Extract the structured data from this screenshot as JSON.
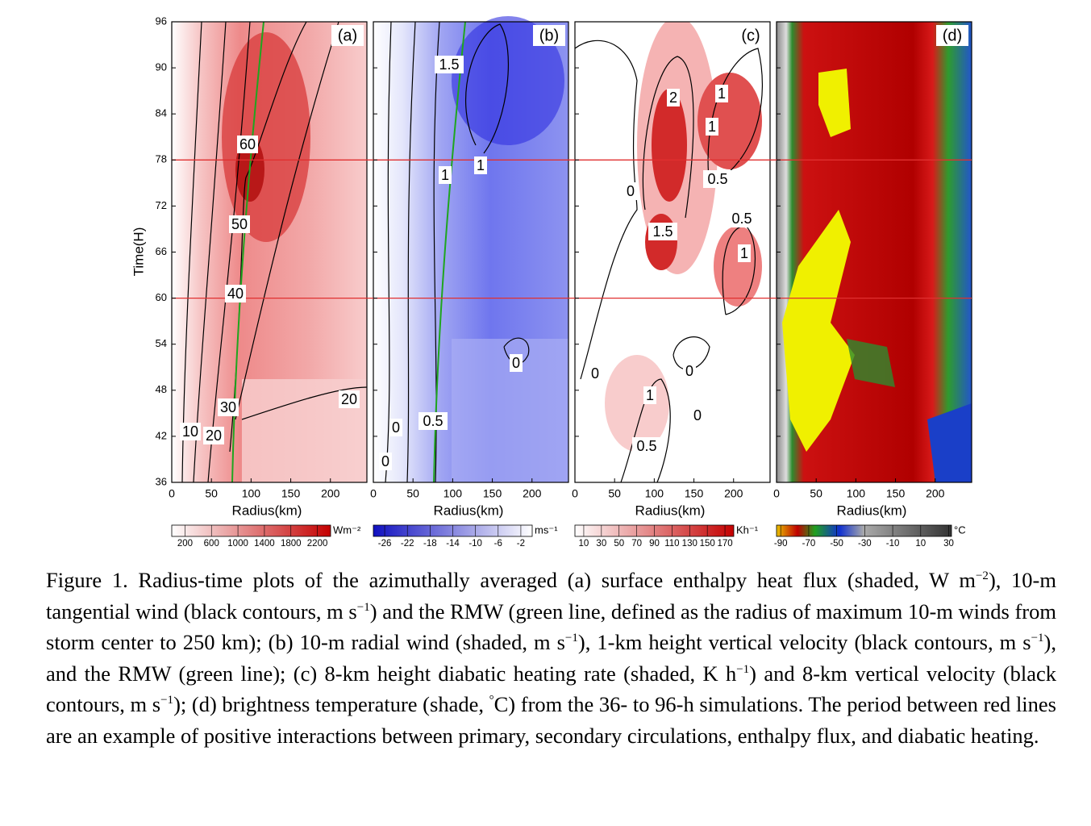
{
  "figure": {
    "ylabel": "Time(H)",
    "ylim": [
      36,
      96
    ],
    "yticks": [
      36,
      42,
      48,
      54,
      60,
      66,
      72,
      78,
      84,
      90,
      96
    ],
    "xlim": [
      0,
      246
    ],
    "xticks": [
      0,
      50,
      100,
      150,
      200
    ],
    "red_lines": [
      60,
      78
    ],
    "panels": [
      {
        "label": "(a)",
        "xlabel": "Radius(km)",
        "contour_labels": [
          60,
          50,
          40,
          30,
          20,
          10,
          20
        ],
        "colorbar": {
          "clim": [
            0,
            2400
          ],
          "ticks": [
            200,
            600,
            1000,
            1400,
            1800,
            2200
          ],
          "unit": "Wm⁻²"
        }
      },
      {
        "label": "(b)",
        "xlabel": "Radius(km)",
        "contour_labels": [
          1.5,
          1,
          1,
          0,
          0.5,
          0,
          0
        ],
        "colorbar": {
          "clim": [
            -28,
            0
          ],
          "ticks": [
            -26,
            -22,
            -18,
            -14,
            -10,
            -6,
            -2
          ],
          "unit": "ms⁻¹"
        }
      },
      {
        "label": "(c)",
        "xlabel": "Radius(km)",
        "contour_labels": [
          2,
          1,
          1,
          0,
          0.5,
          0.5,
          1.5,
          1,
          0,
          0,
          1,
          0,
          0.5
        ],
        "colorbar": {
          "clim": [
            0,
            180
          ],
          "ticks": [
            10,
            30,
            50,
            70,
            90,
            110,
            130,
            150,
            170
          ],
          "unit": "Kh⁻¹"
        }
      },
      {
        "label": "(d)",
        "xlabel": "Radius(km)",
        "contour_labels": [],
        "colorbar": {
          "clim": [
            -93,
            32
          ],
          "ticks": [
            -90,
            -70,
            -50,
            -30,
            -10,
            10,
            30
          ],
          "unit": "°C"
        }
      }
    ]
  },
  "caption": [
    {
      "text": "Figure 1. Radius-time plots of the azimuthally averaged (a) surface enthalpy heat flux (shaded, W m"
    },
    {
      "sup": "−2"
    },
    {
      "text": "), 10-m tangential wind (black contours, m s"
    },
    {
      "sup": "−1"
    },
    {
      "text": ") and the RMW (green line, defined as the radius of maximum 10-m winds from storm center to 250 km); (b) 10-m radial wind (shaded, m s"
    },
    {
      "sup": "−1"
    },
    {
      "text": "), 1-km height vertical velocity (black contours, m s"
    },
    {
      "sup": "−1"
    },
    {
      "text": "), and the RMW (green line); (c) 8-km height diabatic heating rate (shaded, K h"
    },
    {
      "sup": "−1"
    },
    {
      "text": ") and 8-km vertical velocity (black contours, m s"
    },
    {
      "sup": "−1"
    },
    {
      "text": "); (d) brightness temperature (shade, "
    },
    {
      "sup": "°"
    },
    {
      "text": "C) from the 36- to 96-h simulations. The period between red lines are an example of positive interactions between primary, secondary circulations, enthalpy flux, and diabatic heating."
    }
  ]
}
